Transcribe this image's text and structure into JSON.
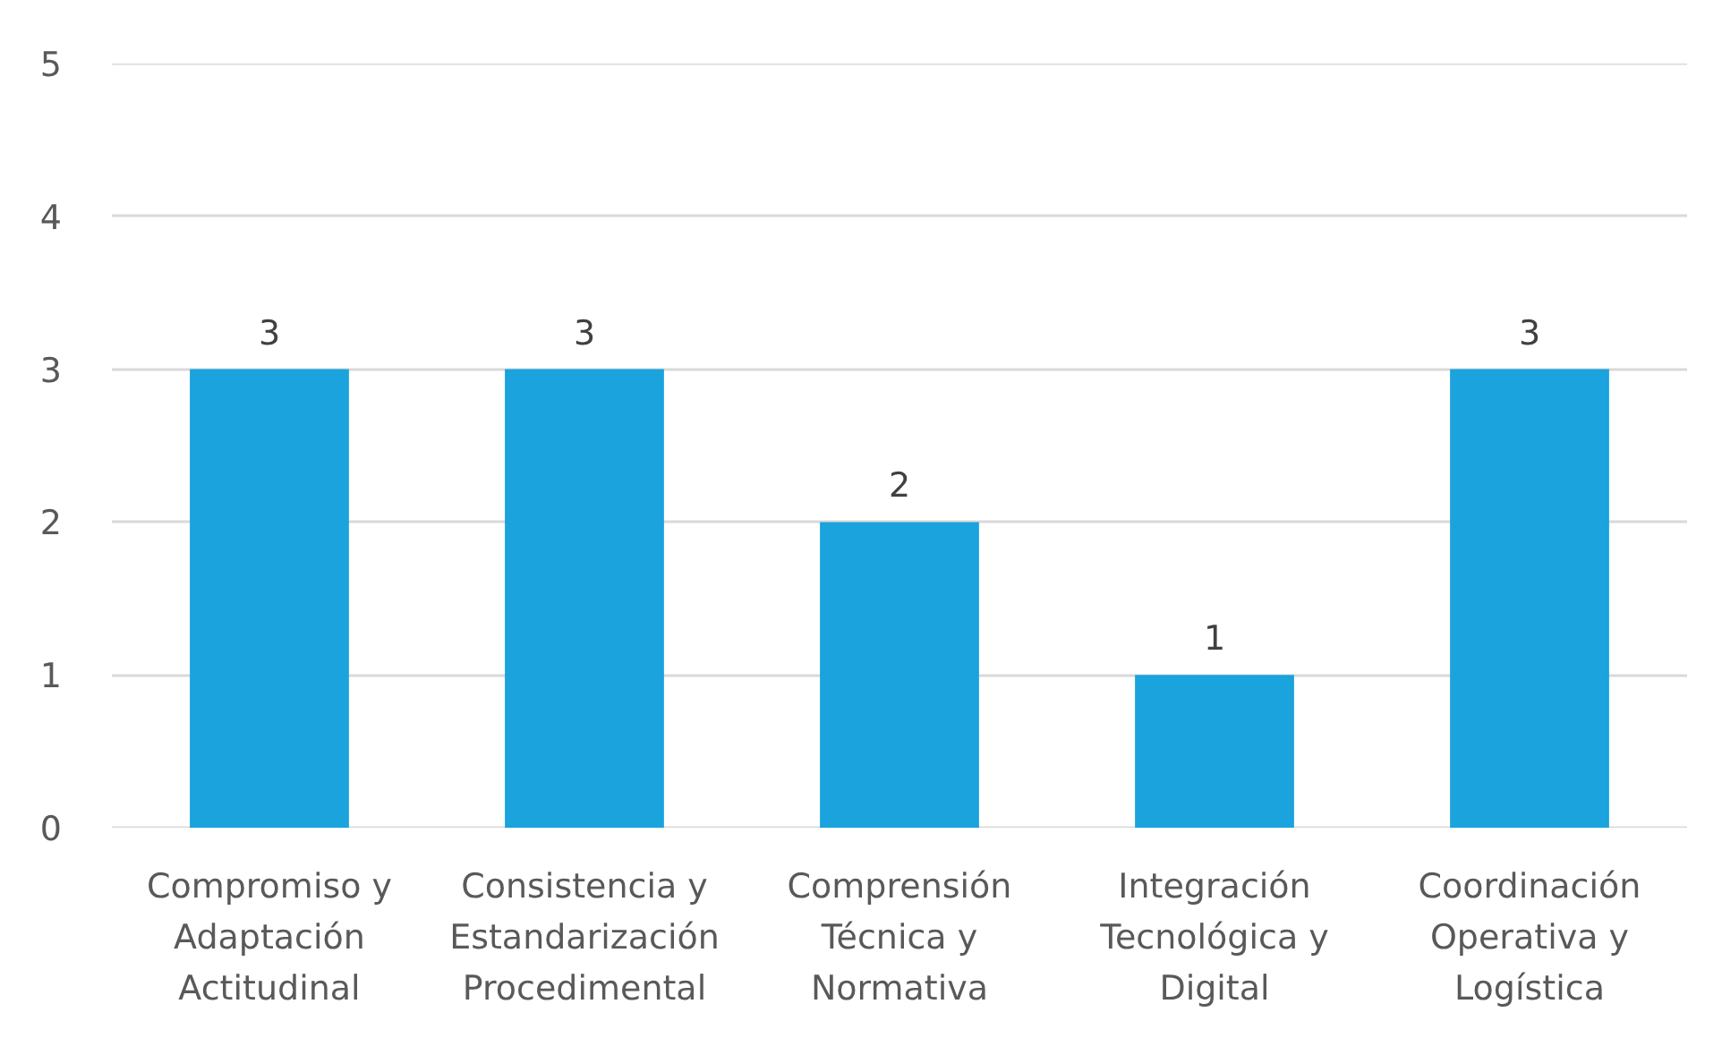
{
  "chart_data": {
    "type": "bar",
    "categories": [
      "Compromiso y Adaptación Actitudinal",
      "Consistencia y Estandarización Procedimental",
      "Comprensión Técnica y Normativa",
      "Integración Tecnológica y Digital",
      "Coordinación Operativa y Logística"
    ],
    "values": [
      3,
      3,
      2,
      1,
      3
    ],
    "color": "#1aa3dd",
    "ylim": [
      0,
      5
    ],
    "yticks": [
      0,
      1,
      2,
      3,
      4,
      5
    ],
    "grid": "y",
    "data_labels": true
  }
}
